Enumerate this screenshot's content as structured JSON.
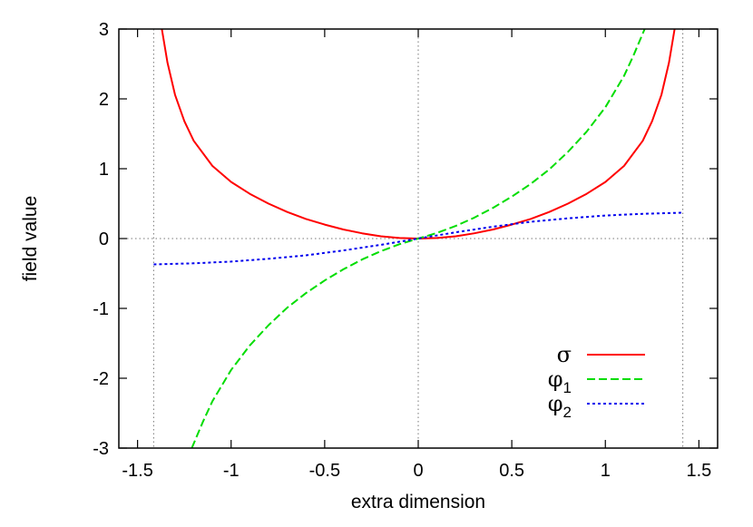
{
  "chart_data": {
    "type": "line",
    "xlabel": "extra dimension",
    "ylabel": "field value",
    "xlim": [
      -1.6,
      1.6
    ],
    "ylim": [
      -3,
      3
    ],
    "xticks": [
      -1.5,
      -1,
      -0.5,
      0,
      0.5,
      1,
      1.5
    ],
    "xtick_labels": [
      "-1.5",
      "-1",
      "-0.5",
      "0",
      "0.5",
      "1",
      "1.5"
    ],
    "yticks": [
      -3,
      -2,
      -1,
      0,
      1,
      2,
      3
    ],
    "ytick_labels": [
      "-3",
      "-2",
      "-1",
      "0",
      "1",
      "2",
      "3"
    ],
    "reference_lines": {
      "x": [
        -1.414,
        0,
        1.414
      ],
      "y": [
        0
      ]
    },
    "legend_position": "bottom-right",
    "series": [
      {
        "name": "σ",
        "color": "#ff0000",
        "dash": "solid",
        "x": [
          -1.37,
          -1.34,
          -1.3,
          -1.25,
          -1.2,
          -1.1,
          -1.0,
          -0.9,
          -0.8,
          -0.7,
          -0.6,
          -0.5,
          -0.4,
          -0.3,
          -0.2,
          -0.1,
          0,
          0.1,
          0.2,
          0.3,
          0.4,
          0.5,
          0.6,
          0.7,
          0.8,
          0.9,
          1.0,
          1.1,
          1.2,
          1.25,
          1.3,
          1.34,
          1.37
        ],
        "y": [
          3.0,
          2.52,
          2.06,
          1.68,
          1.4,
          1.04,
          0.81,
          0.64,
          0.5,
          0.38,
          0.28,
          0.2,
          0.13,
          0.075,
          0.033,
          0.008,
          0,
          0.008,
          0.033,
          0.075,
          0.13,
          0.2,
          0.28,
          0.38,
          0.5,
          0.64,
          0.81,
          1.04,
          1.4,
          1.68,
          2.06,
          2.52,
          3.0
        ]
      },
      {
        "name": "φ1",
        "color": "#00dd00",
        "dash": "dashed",
        "x": [
          -1.21,
          -1.15,
          -1.1,
          -1.0,
          -0.9,
          -0.8,
          -0.7,
          -0.6,
          -0.5,
          -0.4,
          -0.3,
          -0.2,
          -0.1,
          0,
          0.1,
          0.2,
          0.3,
          0.4,
          0.5,
          0.6,
          0.7,
          0.8,
          0.9,
          1.0,
          1.1,
          1.15,
          1.21
        ],
        "y": [
          -3.0,
          -2.62,
          -2.33,
          -1.88,
          -1.53,
          -1.24,
          -0.99,
          -0.78,
          -0.6,
          -0.44,
          -0.3,
          -0.18,
          -0.08,
          0,
          0.08,
          0.18,
          0.3,
          0.44,
          0.6,
          0.78,
          0.99,
          1.24,
          1.53,
          1.88,
          2.33,
          2.62,
          3.0
        ]
      },
      {
        "name": "φ2",
        "color": "#0000ee",
        "dash": "dotted",
        "x": [
          -1.414,
          -1.2,
          -1.0,
          -0.8,
          -0.6,
          -0.4,
          -0.2,
          0,
          0.2,
          0.4,
          0.6,
          0.8,
          1.0,
          1.2,
          1.414
        ],
        "y": [
          -0.37,
          -0.355,
          -0.33,
          -0.29,
          -0.24,
          -0.17,
          -0.09,
          0,
          0.09,
          0.17,
          0.24,
          0.29,
          0.33,
          0.355,
          0.37
        ]
      }
    ]
  }
}
